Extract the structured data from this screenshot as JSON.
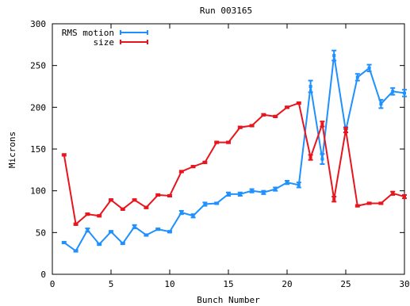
{
  "chart_data": {
    "type": "line",
    "title": "Run 003165",
    "xlabel": "Bunch Number",
    "ylabel": "Microns",
    "xlim": [
      0,
      30
    ],
    "ylim": [
      0,
      300
    ],
    "xticks": [
      0,
      5,
      10,
      15,
      20,
      25,
      30
    ],
    "yticks": [
      0,
      50,
      100,
      150,
      200,
      250,
      300
    ],
    "grid": false,
    "legend_position": "top-left",
    "x": [
      1,
      2,
      3,
      4,
      5,
      6,
      7,
      8,
      9,
      10,
      11,
      12,
      13,
      14,
      15,
      16,
      17,
      18,
      19,
      20,
      21,
      22,
      23,
      24,
      25,
      26,
      27,
      28,
      29,
      30
    ],
    "series": [
      {
        "name": "RMS motion",
        "color": "#1e90ff",
        "values": [
          38,
          28,
          53,
          36,
          51,
          37,
          57,
          47,
          54,
          51,
          74,
          70,
          84,
          85,
          96,
          96,
          100,
          98,
          102,
          110,
          107,
          225,
          138,
          262,
          172,
          236,
          247,
          204,
          219,
          217
        ],
        "errors": [
          1,
          1,
          2,
          1,
          1,
          1,
          2,
          1,
          1,
          1,
          2,
          2,
          2,
          1,
          2,
          2,
          2,
          2,
          2,
          2,
          3,
          7,
          6,
          6,
          2,
          4,
          4,
          5,
          4,
          4
        ]
      },
      {
        "name": "size",
        "color": "#e8141e",
        "values": [
          143,
          60,
          72,
          70,
          89,
          78,
          89,
          80,
          95,
          94,
          123,
          129,
          134,
          158,
          158,
          176,
          178,
          191,
          189,
          200,
          205,
          140,
          180,
          90,
          173,
          82,
          85,
          85,
          97,
          93
        ],
        "errors": [
          1,
          1,
          1,
          1,
          1,
          1,
          1,
          1,
          1,
          1,
          1,
          1,
          1,
          1,
          1,
          1,
          1,
          1,
          1,
          1,
          1,
          3,
          3,
          3,
          3,
          1,
          1,
          1,
          2,
          2
        ]
      }
    ]
  }
}
